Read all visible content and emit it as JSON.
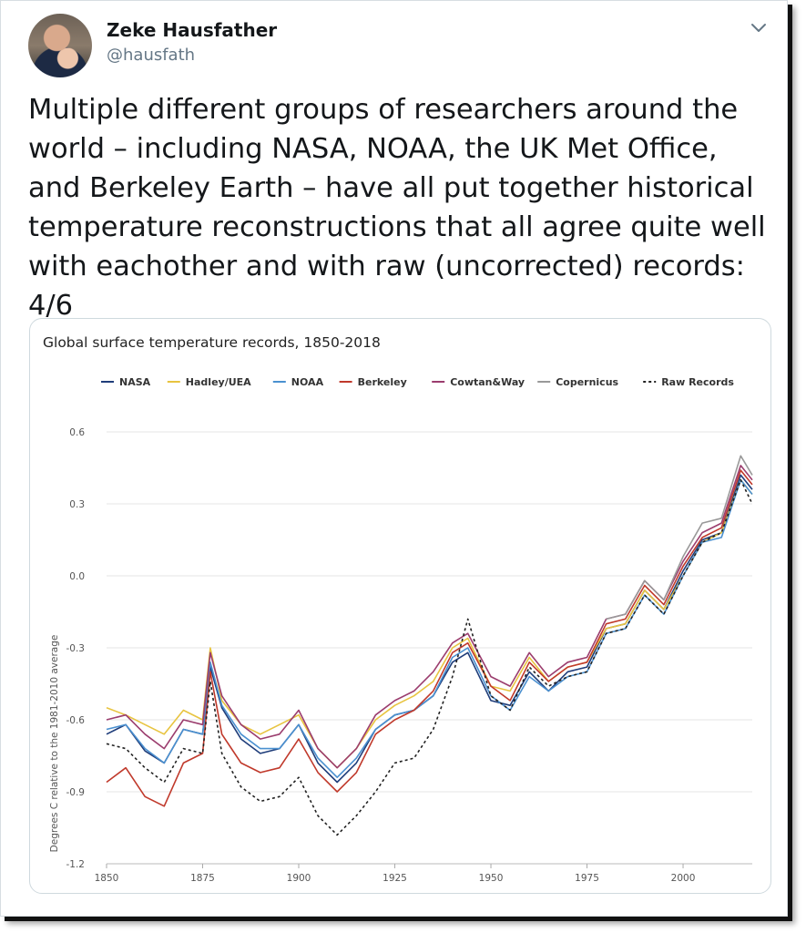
{
  "tweet": {
    "author_name": "Zeke Hausfather",
    "author_handle": "@hausfath",
    "text": "Multiple different groups of researchers around the world – including NASA, NOAA, the UK Met Office, and Berkeley Earth – have all put together historical temperature reconstructions that all agree quite well with eachother and with raw (uncorrected) records: 4/6",
    "menu_icon": "chevron-down-icon"
  },
  "chart_data": {
    "type": "line",
    "title": "Global surface temperature records, 1850-2018",
    "xlabel": "",
    "ylabel": "Degrees C relative to the 1981-2010 average",
    "xlim": [
      1850,
      2018
    ],
    "ylim": [
      -1.2,
      0.6
    ],
    "xticks": [
      1850,
      1875,
      1900,
      1925,
      1950,
      1975,
      2000
    ],
    "yticks": [
      -1.2,
      -0.9,
      -0.6,
      -0.3,
      0.0,
      0.3,
      0.6
    ],
    "ytick_labels": [
      "-1.2",
      "-0.9",
      "-0.6",
      "-0.3",
      "0.0",
      "0.3",
      "0.6"
    ],
    "grid": true,
    "legend_position": "top",
    "x": [
      1850,
      1855,
      1860,
      1865,
      1870,
      1875,
      1877,
      1880,
      1885,
      1890,
      1895,
      1900,
      1905,
      1910,
      1915,
      1920,
      1925,
      1930,
      1935,
      1940,
      1944,
      1950,
      1955,
      1960,
      1965,
      1970,
      1975,
      1980,
      1985,
      1990,
      1995,
      2000,
      2005,
      2010,
      2015,
      2018
    ],
    "series": [
      {
        "name": "NASA",
        "color": "#1f3d7a",
        "dash": "",
        "values": [
          -0.66,
          -0.62,
          -0.73,
          -0.78,
          -0.64,
          -0.66,
          -0.38,
          -0.55,
          -0.68,
          -0.74,
          -0.72,
          -0.62,
          -0.78,
          -0.86,
          -0.78,
          -0.64,
          -0.58,
          -0.56,
          -0.5,
          -0.36,
          -0.32,
          -0.52,
          -0.54,
          -0.4,
          -0.48,
          -0.4,
          -0.38,
          -0.22,
          -0.2,
          -0.06,
          -0.14,
          0.02,
          0.15,
          0.18,
          0.42,
          0.36
        ]
      },
      {
        "name": "Hadley/UEA",
        "color": "#e8c440",
        "dash": "",
        "values": [
          -0.55,
          -0.58,
          -0.62,
          -0.66,
          -0.56,
          -0.6,
          -0.3,
          -0.52,
          -0.62,
          -0.66,
          -0.62,
          -0.58,
          -0.72,
          -0.8,
          -0.72,
          -0.6,
          -0.54,
          -0.5,
          -0.44,
          -0.3,
          -0.26,
          -0.46,
          -0.48,
          -0.34,
          -0.44,
          -0.38,
          -0.36,
          -0.22,
          -0.2,
          -0.06,
          -0.14,
          0.0,
          0.14,
          0.18,
          0.4,
          0.34
        ]
      },
      {
        "name": "NOAA",
        "color": "#4a90d0",
        "dash": "",
        "values": [
          -0.64,
          -0.62,
          -0.72,
          -0.78,
          -0.64,
          -0.66,
          -0.36,
          -0.54,
          -0.66,
          -0.72,
          -0.72,
          -0.62,
          -0.76,
          -0.84,
          -0.76,
          -0.64,
          -0.58,
          -0.56,
          -0.5,
          -0.34,
          -0.3,
          -0.5,
          -0.56,
          -0.42,
          -0.48,
          -0.42,
          -0.4,
          -0.24,
          -0.22,
          -0.08,
          -0.16,
          0.0,
          0.14,
          0.16,
          0.4,
          0.34
        ]
      },
      {
        "name": "Berkeley",
        "color": "#c0392b",
        "dash": "",
        "values": [
          -0.86,
          -0.8,
          -0.92,
          -0.96,
          -0.78,
          -0.74,
          -0.4,
          -0.66,
          -0.78,
          -0.82,
          -0.8,
          -0.68,
          -0.82,
          -0.9,
          -0.82,
          -0.66,
          -0.6,
          -0.56,
          -0.48,
          -0.32,
          -0.28,
          -0.46,
          -0.52,
          -0.36,
          -0.44,
          -0.38,
          -0.36,
          -0.2,
          -0.18,
          -0.04,
          -0.12,
          0.04,
          0.16,
          0.2,
          0.44,
          0.38
        ]
      },
      {
        "name": "Cowtan&Way",
        "color": "#9b3d6e",
        "dash": "",
        "values": [
          -0.6,
          -0.58,
          -0.66,
          -0.72,
          -0.6,
          -0.62,
          -0.32,
          -0.5,
          -0.62,
          -0.68,
          -0.66,
          -0.56,
          -0.72,
          -0.8,
          -0.72,
          -0.58,
          -0.52,
          -0.48,
          -0.4,
          -0.28,
          -0.24,
          -0.42,
          -0.46,
          -0.32,
          -0.42,
          -0.36,
          -0.34,
          -0.18,
          -0.16,
          -0.02,
          -0.1,
          0.06,
          0.18,
          0.22,
          0.46,
          0.4
        ]
      },
      {
        "name": "Copernicus",
        "color": "#999999",
        "dash": "",
        "values": [
          null,
          null,
          null,
          null,
          null,
          null,
          null,
          null,
          null,
          null,
          null,
          null,
          null,
          null,
          null,
          null,
          null,
          null,
          null,
          null,
          null,
          null,
          null,
          null,
          null,
          null,
          null,
          -0.18,
          -0.16,
          -0.02,
          -0.1,
          0.08,
          0.22,
          0.24,
          0.5,
          0.42
        ]
      },
      {
        "name": "Raw Records",
        "color": "#222222",
        "dash": "3,3",
        "values": [
          -0.7,
          -0.72,
          -0.8,
          -0.86,
          -0.72,
          -0.74,
          -0.44,
          -0.74,
          -0.88,
          -0.94,
          -0.92,
          -0.84,
          -1.0,
          -1.08,
          -1.0,
          -0.9,
          -0.78,
          -0.76,
          -0.64,
          -0.42,
          -0.18,
          -0.5,
          -0.56,
          -0.38,
          -0.46,
          -0.42,
          -0.4,
          -0.24,
          -0.22,
          -0.08,
          -0.16,
          0.0,
          0.14,
          0.18,
          0.4,
          0.3
        ]
      }
    ]
  }
}
